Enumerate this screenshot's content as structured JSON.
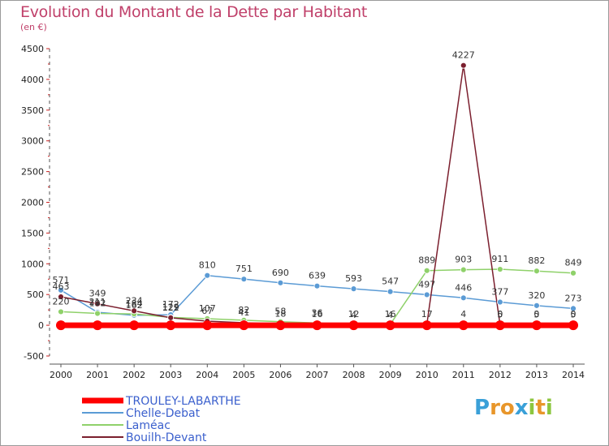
{
  "title": "Evolution du Montant de la Dette par Habitant",
  "subtitle": "(en €)",
  "logo": "Proxiti",
  "chart_data": {
    "type": "line",
    "title": "Evolution du Montant de la Dette par Habitant",
    "subtitle": "(en €)",
    "xlabel": "",
    "ylabel": "",
    "x": [
      "2000",
      "2001",
      "2002",
      "2003",
      "2004",
      "2005",
      "2006",
      "2007",
      "2008",
      "2009",
      "2010",
      "2011",
      "2012",
      "2013",
      "2014"
    ],
    "ylim": [
      -500,
      4500
    ],
    "yticks": [
      -500,
      0,
      500,
      1000,
      1500,
      2000,
      2500,
      3000,
      3500,
      4000,
      4500
    ],
    "grid": false,
    "legend_position": "bottom-left",
    "series": [
      {
        "name": "TROULEY-LABARTHE",
        "color": "#ff0000",
        "values": [
          0,
          0,
          0,
          0,
          0,
          0,
          0,
          0,
          0,
          0,
          0,
          0,
          0,
          0,
          0
        ],
        "labels": [
          "",
          "",
          "",
          "",
          "",
          "",
          "",
          "",
          "",
          "",
          "",
          "",
          "",
          "",
          ""
        ]
      },
      {
        "name": "Chelle-Debat",
        "color": "#5b9bd5",
        "values": [
          571,
          211,
          162,
          172,
          810,
          751,
          690,
          639,
          593,
          547,
          497,
          446,
          377,
          320,
          273
        ],
        "labels": [
          "571",
          "211",
          "162",
          "172",
          "810",
          "751",
          "690",
          "639",
          "593",
          "547",
          "497",
          "446",
          "377",
          "320",
          "273"
        ]
      },
      {
        "name": "Laméac",
        "color": "#8fd16a",
        "values": [
          220,
          192,
          184,
          129,
          107,
          82,
          58,
          36,
          12,
          16,
          889,
          903,
          911,
          882,
          849
        ],
        "labels": [
          "220",
          "192",
          "184",
          "129",
          "107",
          "82",
          "58",
          "36",
          "12",
          "16",
          "889",
          "903",
          "911",
          "882",
          "849"
        ]
      },
      {
        "name": "Bouilh-Devant",
        "color": "#7b1f2e",
        "values": [
          463,
          349,
          234,
          122,
          67,
          41,
          18,
          16,
          4,
          4,
          17,
          4227,
          5,
          5,
          5
        ],
        "labels": [
          "463",
          "349",
          "234",
          "122",
          "67",
          "41",
          "18",
          "16",
          "4",
          "4",
          "17",
          "4227",
          "5",
          "5",
          "5"
        ]
      }
    ],
    "extra_labels": [
      {
        "x": "2011",
        "text": "4"
      },
      {
        "x": "2012",
        "text": "0"
      },
      {
        "x": "2013",
        "text": "0"
      },
      {
        "x": "2014",
        "text": "0"
      }
    ]
  }
}
